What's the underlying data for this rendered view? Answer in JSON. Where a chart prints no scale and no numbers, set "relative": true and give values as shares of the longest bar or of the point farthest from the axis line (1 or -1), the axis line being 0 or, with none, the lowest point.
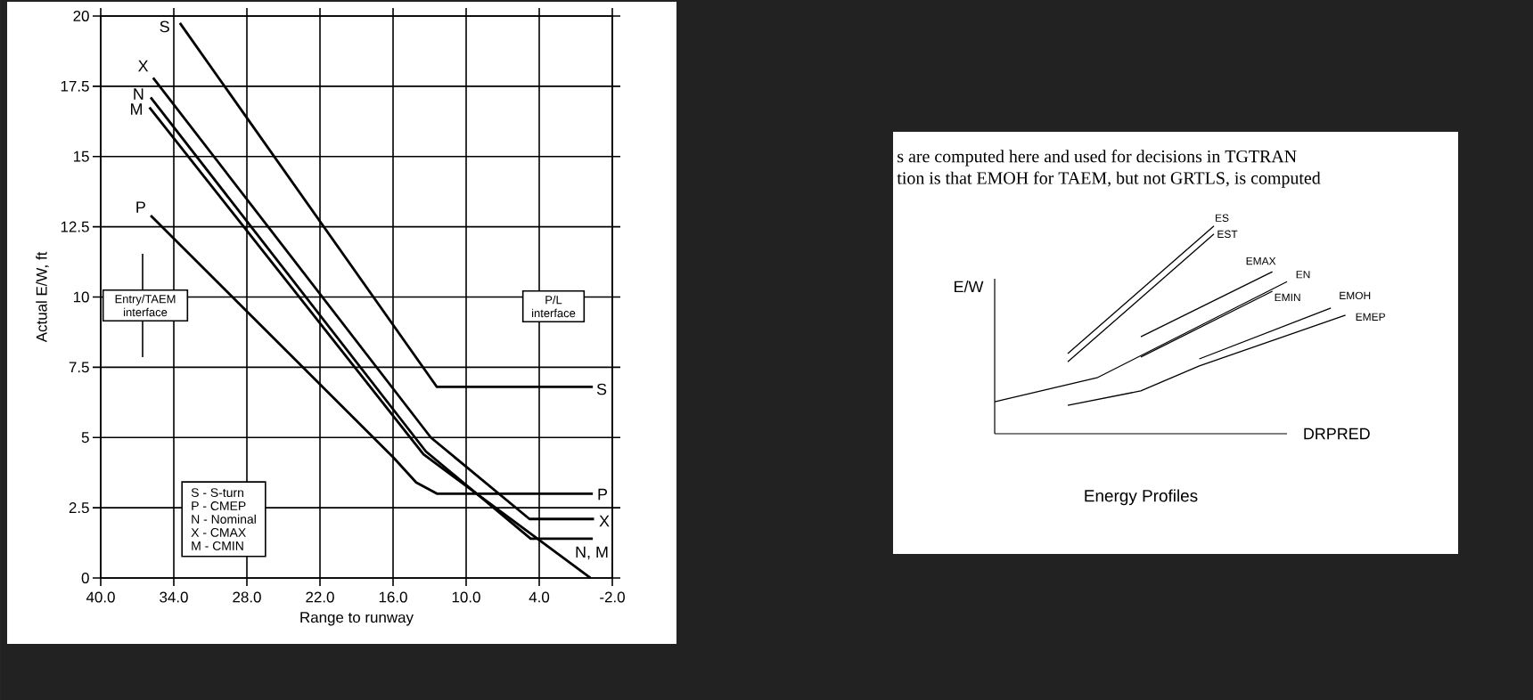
{
  "chart_data": [
    {
      "type": "line",
      "xlabel": "Range to runway",
      "ylabel": "Actual E/W, ft",
      "xlim": [
        40,
        -2
      ],
      "xticks": [
        {
          "value": 40,
          "label": "40.0"
        },
        {
          "value": 34,
          "label": "34.0"
        },
        {
          "value": 28,
          "label": "28.0"
        },
        {
          "value": 22,
          "label": "22.0"
        },
        {
          "value": 16,
          "label": "16.0"
        },
        {
          "value": 10,
          "label": "10.0"
        },
        {
          "value": 4,
          "label": "4.0"
        },
        {
          "value": -2,
          "label": "-2.0"
        }
      ],
      "ylim": [
        0,
        20
      ],
      "yticks": [
        0,
        2.5,
        5,
        7.5,
        10,
        12.5,
        15,
        17.5,
        20
      ],
      "grid": true,
      "series": [
        {
          "name": "S",
          "color": "#000000",
          "x": [
            33.5,
            12.4,
            -0.4
          ],
          "values": [
            19.75,
            6.8,
            6.8
          ]
        },
        {
          "name": "P",
          "color": "#000000",
          "x": [
            35.9,
            16.0,
            14.1,
            12.4,
            -0.4
          ],
          "values": [
            12.9,
            4.3,
            3.4,
            3.0,
            3.0
          ]
        },
        {
          "name": "N",
          "color": "#000000",
          "x": [
            35.9,
            13.3,
            4.7,
            -0.4
          ],
          "values": [
            17.1,
            4.5,
            1.4,
            1.4
          ]
        },
        {
          "name": "X",
          "color": "#000000",
          "x": [
            35.7,
            12.9,
            4.8,
            -0.5
          ],
          "values": [
            17.8,
            5.0,
            2.1,
            2.1
          ]
        },
        {
          "name": "M",
          "color": "#000000",
          "x": [
            36.0,
            13.5,
            -0.2
          ],
          "values": [
            16.75,
            4.4,
            0.0
          ]
        }
      ],
      "annotations": [
        "S  -  S-turn",
        "P  -  CMEP",
        "N  -  Nominal",
        "X  -  CMAX",
        "M  -  CMIN",
        "Entry/TAEM interface",
        "P/L interface",
        "S",
        "P",
        "X",
        "N, M"
      ]
    },
    {
      "type": "line",
      "relative": true,
      "title": "Energy Profiles",
      "xlabel": "DRPRED",
      "ylabel": "E/W",
      "categories": [
        null,
        null,
        null,
        null,
        null,
        null,
        null,
        null,
        null,
        null,
        null,
        null,
        null,
        null,
        null,
        null,
        null,
        null,
        null,
        null,
        null,
        null,
        null,
        null,
        null
      ],
      "series": [
        {
          "name": "EN",
          "color": "#000000",
          "values": [
            0.154,
            null,
            null,
            null,
            null,
            null,
            null,
            0.269,
            null,
            null,
            null,
            null,
            null,
            null,
            null,
            null,
            null,
            null,
            null,
            null,
            0.732,
            null,
            null,
            null,
            null
          ]
        },
        {
          "name": "EMEP",
          "color": "#000000",
          "values": [
            null,
            null,
            null,
            null,
            null,
            0.137,
            null,
            null,
            null,
            null,
            0.206,
            null,
            null,
            null,
            0.326,
            null,
            null,
            null,
            null,
            null,
            null,
            null,
            null,
            null,
            0.571
          ]
        },
        {
          "name": "ES",
          "color": "#000000",
          "values": [
            null,
            null,
            null,
            null,
            null,
            0.386,
            null,
            null,
            null,
            null,
            null,
            null,
            null,
            null,
            null,
            1.0,
            null,
            null,
            null,
            null,
            null,
            null,
            null,
            null,
            null
          ]
        },
        {
          "name": "EST",
          "color": "#000000",
          "values": [
            null,
            null,
            null,
            null,
            null,
            0.346,
            null,
            null,
            null,
            null,
            null,
            null,
            null,
            null,
            null,
            0.961,
            null,
            null,
            null,
            null,
            null,
            null,
            null,
            null,
            null
          ]
        },
        {
          "name": "EMAX",
          "color": "#000000",
          "values": [
            null,
            null,
            null,
            null,
            null,
            null,
            null,
            null,
            null,
            null,
            0.467,
            null,
            null,
            null,
            null,
            null,
            null,
            null,
            null,
            0.78,
            null,
            null,
            null,
            null,
            null
          ]
        },
        {
          "name": "EMIN",
          "color": "#000000",
          "values": [
            null,
            null,
            null,
            null,
            null,
            null,
            null,
            null,
            null,
            null,
            0.369,
            null,
            null,
            null,
            null,
            null,
            null,
            null,
            null,
            0.686,
            null,
            null,
            null,
            null,
            null
          ]
        },
        {
          "name": "EMOH",
          "color": "#000000",
          "values": [
            null,
            null,
            null,
            null,
            null,
            null,
            null,
            null,
            null,
            null,
            null,
            null,
            null,
            null,
            0.36,
            null,
            null,
            null,
            null,
            null,
            null,
            null,
            null,
            0.605,
            null
          ]
        }
      ],
      "annotations": [
        "s are computed here and used for decisions in TGTRAN",
        "tion is that EMOH for TAEM, but not GRTLS, is computed"
      ]
    }
  ]
}
